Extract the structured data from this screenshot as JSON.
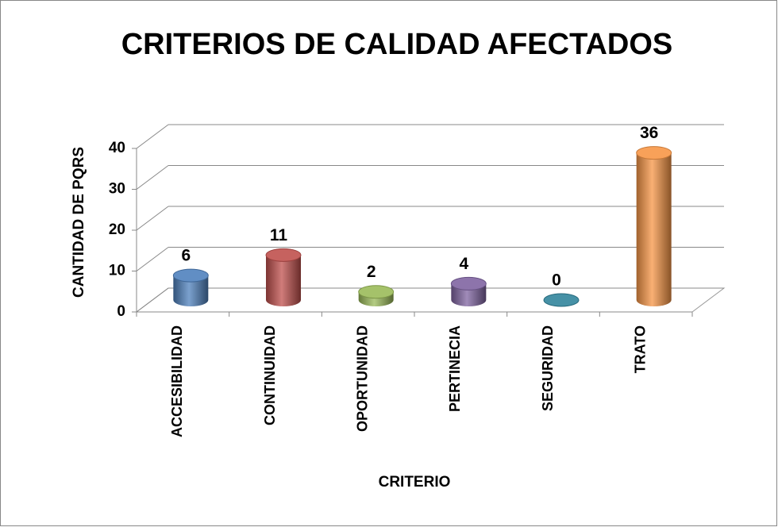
{
  "chart_data": {
    "type": "bar3d",
    "title": "CRITERIOS DE CALIDAD AFECTADOS",
    "x_label": "CRITERIO",
    "y_label": "CANTIDAD DE PQRS",
    "categories": [
      "ACCESIBILIDAD",
      "CONTINUIDAD",
      "OPORTUNIDAD",
      "PERTINECIA",
      "SEGURIDAD",
      "TRATO"
    ],
    "values": [
      6,
      11,
      2,
      4,
      0,
      36
    ],
    "colors": [
      "#4f81bd",
      "#c0504d",
      "#9bbb59",
      "#8064a2",
      "#31859c",
      "#f79646"
    ],
    "ylim": [
      0,
      40
    ],
    "yticks": [
      0,
      10,
      20,
      30,
      40
    ],
    "grid": true
  }
}
